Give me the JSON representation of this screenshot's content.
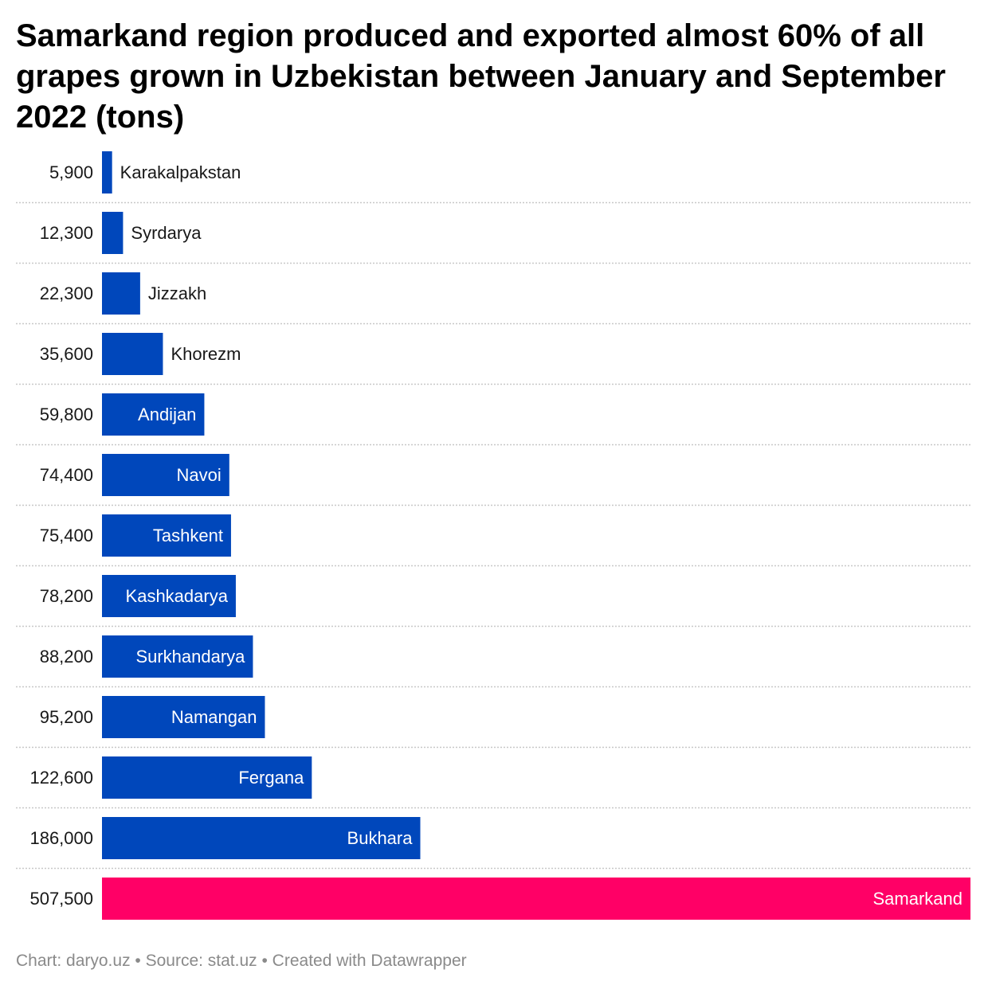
{
  "chart_data": {
    "type": "bar",
    "orientation": "horizontal",
    "title": "Samarkand region produced and exported almost 60% of all grapes grown in Uzbekistan between January and September 2022 (tons)",
    "categories": [
      "Karakalpakstan",
      "Syrdarya",
      "Jizzakh",
      "Khorezm",
      "Andijan",
      "Navoi",
      "Tashkent",
      "Kashkadarya",
      "Surkhandarya",
      "Namangan",
      "Fergana",
      "Bukhara",
      "Samarkand"
    ],
    "values": [
      5900,
      12300,
      22300,
      35600,
      59800,
      74400,
      75400,
      78200,
      88200,
      95200,
      122600,
      186000,
      507500
    ],
    "value_labels": [
      "5,900",
      "12,300",
      "22,300",
      "35,600",
      "59,800",
      "74,400",
      "75,400",
      "78,200",
      "88,200",
      "95,200",
      "122,600",
      "186,000",
      "507,500"
    ],
    "xlim": [
      0,
      507500
    ],
    "grid": false,
    "colors": {
      "default": "#0047bb",
      "highlight": "#ff0066"
    },
    "highlight": "Samarkand"
  },
  "footer": {
    "text": "Chart: daryo.uz • Source: stat.uz • Created with Datawrapper"
  }
}
